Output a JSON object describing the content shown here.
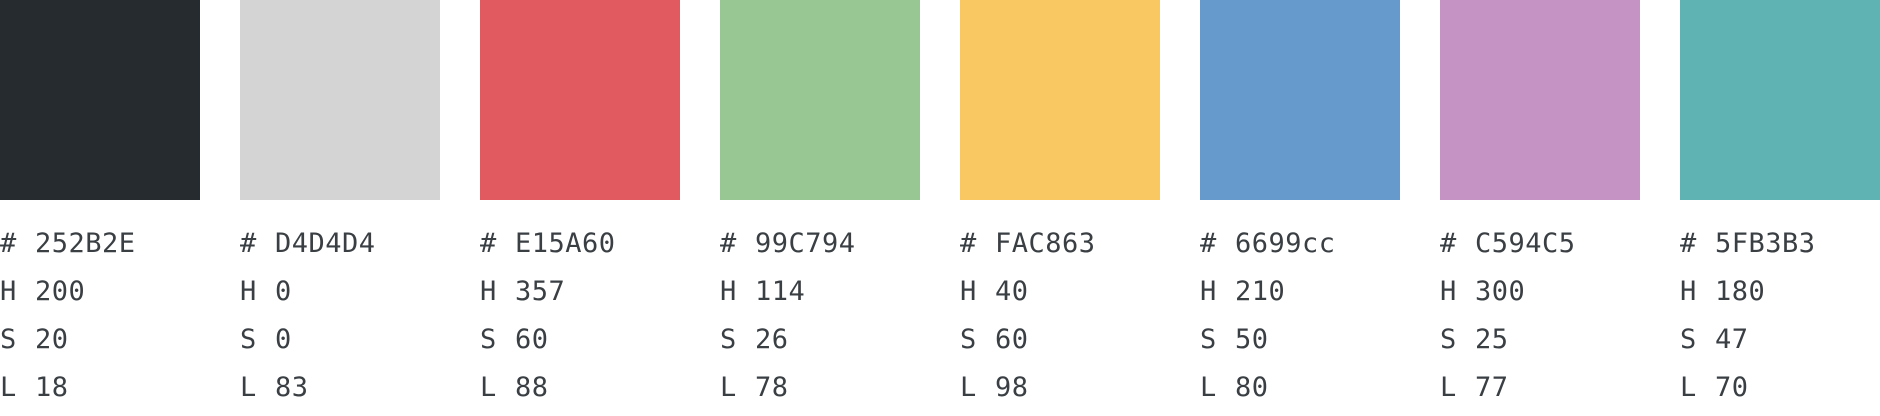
{
  "swatches": [
    {
      "color": "#252B2E",
      "hex": "252B2E",
      "h": "200",
      "s": "20",
      "l": "18"
    },
    {
      "color": "#D4D4D4",
      "hex": "D4D4D4",
      "h": "0",
      "s": "0",
      "l": "83"
    },
    {
      "color": "#E15A60",
      "hex": "E15A60",
      "h": "357",
      "s": "60",
      "l": "88"
    },
    {
      "color": "#99C794",
      "hex": "99C794",
      "h": "114",
      "s": "26",
      "l": "78"
    },
    {
      "color": "#FAC863",
      "hex": "FAC863",
      "h": "40",
      "s": "60",
      "l": "98"
    },
    {
      "color": "#6699cc",
      "hex": "6699cc",
      "h": "210",
      "s": "50",
      "l": "80"
    },
    {
      "color": "#C594C5",
      "hex": "C594C5",
      "h": "300",
      "s": "25",
      "l": "77"
    },
    {
      "color": "#5FB3B3",
      "hex": "5FB3B3",
      "h": "180",
      "s": "47",
      "l": "70"
    }
  ],
  "labels": {
    "hex_prefix": "#",
    "h_label": "H",
    "s_label": "S",
    "l_label": "L"
  }
}
